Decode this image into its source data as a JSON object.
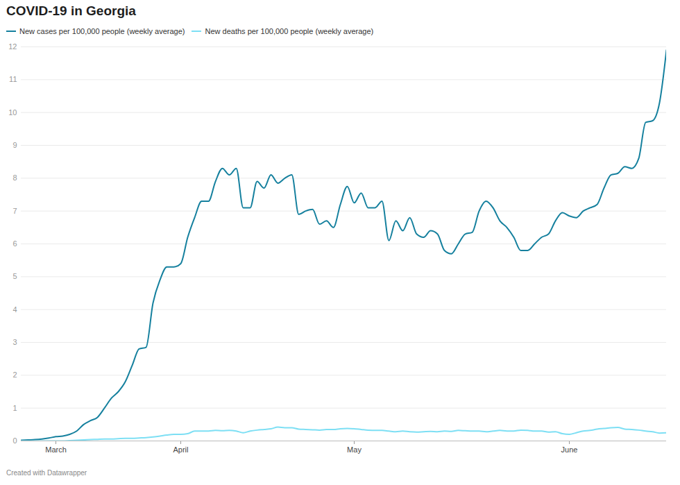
{
  "chart_data": {
    "type": "line",
    "title": "COVID-19 in Georgia",
    "caption": "Created with Datawrapper",
    "legend": "top",
    "grid": true,
    "categories": [
      null,
      null,
      null,
      null,
      null,
      "March",
      null,
      null,
      null,
      null,
      null,
      null,
      null,
      null,
      null,
      null,
      null,
      null,
      null,
      null,
      null,
      null,
      null,
      "April",
      null,
      null,
      null,
      null,
      null,
      null,
      null,
      null,
      null,
      null,
      null,
      null,
      null,
      null,
      null,
      null,
      null,
      null,
      null,
      null,
      null,
      null,
      null,
      null,
      "May",
      null,
      null,
      null,
      null,
      null,
      null,
      null,
      null,
      null,
      null,
      null,
      null,
      null,
      null,
      null,
      null,
      null,
      null,
      null,
      null,
      null,
      null,
      null,
      null,
      null,
      null,
      null,
      null,
      null,
      null,
      "June",
      null,
      null,
      null,
      null,
      null,
      null,
      null,
      null,
      null,
      null,
      null,
      null,
      null,
      null
    ],
    "series": [
      {
        "name": "New cases per 100,000 people (weekly average)",
        "color": "#15809e",
        "values": [
          0.02,
          0.03,
          0.04,
          0.06,
          0.09,
          0.13,
          0.15,
          0.2,
          0.3,
          0.5,
          0.62,
          0.72,
          1.0,
          1.3,
          1.5,
          1.8,
          2.3,
          2.8,
          2.85,
          4.2,
          4.9,
          5.3,
          5.3,
          5.4,
          6.2,
          6.8,
          7.3,
          7.3,
          7.9,
          8.3,
          8.1,
          8.3,
          7.1,
          7.1,
          7.9,
          7.7,
          8.1,
          7.85,
          8.0,
          8.1,
          6.9,
          7.0,
          7.05,
          6.6,
          6.7,
          6.5,
          7.2,
          7.75,
          7.25,
          7.55,
          7.1,
          7.1,
          7.3,
          6.1,
          6.7,
          6.4,
          6.8,
          6.3,
          6.2,
          6.4,
          6.3,
          5.8,
          5.7,
          6.0,
          6.3,
          6.35,
          7.0,
          7.3,
          7.1,
          6.7,
          6.5,
          6.2,
          5.8,
          5.8,
          6.0,
          6.2,
          6.3,
          6.7,
          6.95,
          6.85,
          6.8,
          7.0,
          7.1,
          7.2,
          7.7,
          8.1,
          8.15,
          8.35,
          8.3,
          8.6,
          9.7,
          9.75,
          10.3,
          11.9
        ]
      },
      {
        "name": "New deaths per 100,000 people (weekly average)",
        "color": "#7ddff4",
        "values": [
          0,
          0,
          0,
          0,
          0,
          0,
          0,
          0.01,
          0.02,
          0.03,
          0.04,
          0.05,
          0.06,
          0.06,
          0.07,
          0.08,
          0.08,
          0.09,
          0.1,
          0.12,
          0.15,
          0.18,
          0.2,
          0.2,
          0.22,
          0.3,
          0.3,
          0.3,
          0.32,
          0.31,
          0.32,
          0.3,
          0.25,
          0.3,
          0.33,
          0.35,
          0.37,
          0.42,
          0.4,
          0.4,
          0.36,
          0.35,
          0.34,
          0.33,
          0.35,
          0.35,
          0.37,
          0.38,
          0.37,
          0.35,
          0.33,
          0.32,
          0.32,
          0.3,
          0.28,
          0.3,
          0.28,
          0.27,
          0.28,
          0.29,
          0.28,
          0.3,
          0.29,
          0.32,
          0.31,
          0.3,
          0.3,
          0.28,
          0.3,
          0.32,
          0.3,
          0.3,
          0.33,
          0.32,
          0.3,
          0.3,
          0.27,
          0.28,
          0.22,
          0.2,
          0.25,
          0.3,
          0.32,
          0.36,
          0.38,
          0.4,
          0.41,
          0.36,
          0.35,
          0.33,
          0.3,
          0.28,
          0.24,
          0.25
        ]
      }
    ],
    "ylim": [
      0,
      12
    ],
    "yticks": [
      0,
      1,
      2,
      3,
      4,
      5,
      6,
      7,
      8,
      9,
      10,
      11,
      12
    ]
  }
}
